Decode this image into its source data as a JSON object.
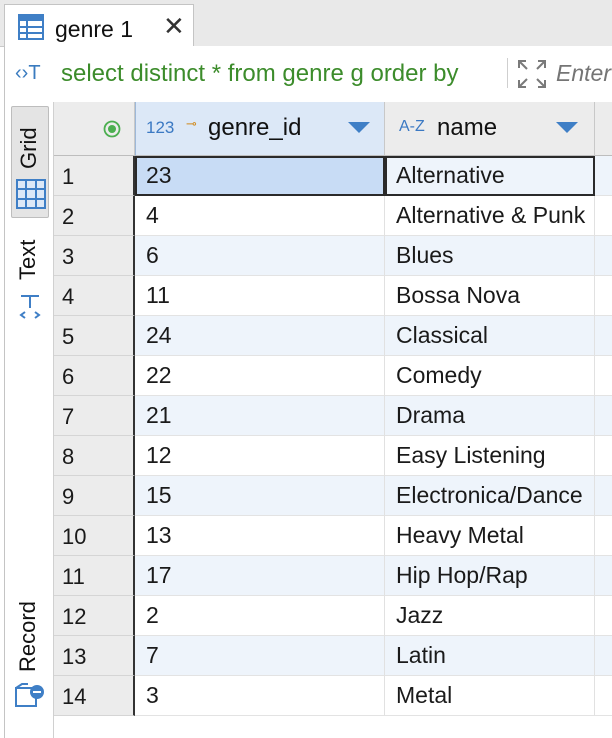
{
  "tab": {
    "title": "genre 1",
    "close_glyph": "✕",
    "icon": "table-grid-icon"
  },
  "sql_bar": {
    "icon_text": "‹›T",
    "query": "select distinct * from genre g order by",
    "filter_placeholder": "Enter a SQL expression to filter results"
  },
  "side_panel": {
    "grid_label": "Grid",
    "text_label": "Text",
    "record_label": "Record"
  },
  "grid": {
    "columns": [
      {
        "label": "genre_id",
        "type_badge": "123",
        "key_badge": "⊸"
      },
      {
        "label": "name",
        "type_badge": "A-Z"
      }
    ],
    "rows": [
      {
        "n": "1",
        "genre_id": "23",
        "name": "Alternative"
      },
      {
        "n": "2",
        "genre_id": "4",
        "name": "Alternative & Punk"
      },
      {
        "n": "3",
        "genre_id": "6",
        "name": "Blues"
      },
      {
        "n": "4",
        "genre_id": "11",
        "name": "Bossa Nova"
      },
      {
        "n": "5",
        "genre_id": "24",
        "name": "Classical"
      },
      {
        "n": "6",
        "genre_id": "22",
        "name": "Comedy"
      },
      {
        "n": "7",
        "genre_id": "21",
        "name": "Drama"
      },
      {
        "n": "8",
        "genre_id": "12",
        "name": "Easy Listening"
      },
      {
        "n": "9",
        "genre_id": "15",
        "name": "Electronica/Dance"
      },
      {
        "n": "10",
        "genre_id": "13",
        "name": "Heavy Metal"
      },
      {
        "n": "11",
        "genre_id": "17",
        "name": "Hip Hop/Rap"
      },
      {
        "n": "12",
        "genre_id": "2",
        "name": "Jazz"
      },
      {
        "n": "13",
        "genre_id": "7",
        "name": "Latin"
      },
      {
        "n": "14",
        "genre_id": "3",
        "name": "Metal"
      }
    ]
  },
  "colors": {
    "accent": "#3f7fc6",
    "sql_green": "#3c8c2b",
    "selected_cell": "#c8dcf5",
    "alt_row": "#eef4fb"
  }
}
